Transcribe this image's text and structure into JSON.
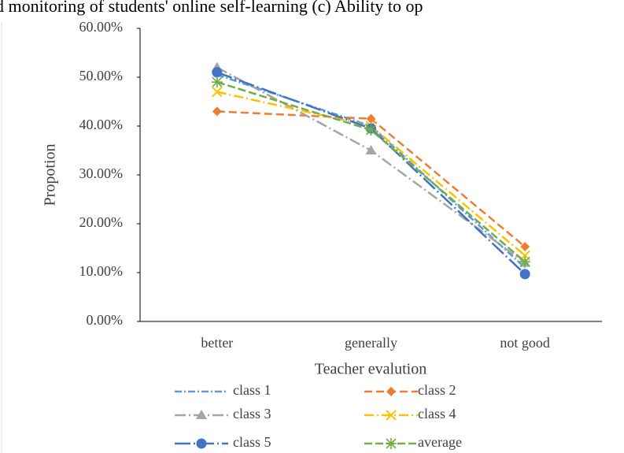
{
  "chart_data": {
    "type": "line",
    "title": "d monitoring of students' online self-learning (c) Ability to op",
    "x_label": "Teacher evalution",
    "y_label": "Propotion",
    "categories": [
      "better",
      "generally",
      "not good"
    ],
    "series": [
      {
        "name": "class 1",
        "color": "#5b9bd5",
        "marker": "none",
        "dash": "9 3 2 3",
        "values": [
          50.5,
          40,
          11
        ]
      },
      {
        "name": "class 2",
        "color": "#ed7d31",
        "marker": "diamond",
        "dash": "10 5",
        "values": [
          43,
          41.5,
          15.3
        ]
      },
      {
        "name": "class 3",
        "color": "#a5a5a5",
        "marker": "triangle",
        "dash": "14 4 2 4",
        "values": [
          52,
          35,
          12
        ]
      },
      {
        "name": "class 4",
        "color": "#ffc000",
        "marker": "x",
        "dash": "12 4 2 4",
        "values": [
          47,
          40,
          13.5
        ]
      },
      {
        "name": "class 5",
        "color": "#4472c4",
        "marker": "circle",
        "dash": "20 4 2 4",
        "values": [
          51,
          39.5,
          9.7
        ]
      },
      {
        "name": "average",
        "color": "#70ad47",
        "marker": "star",
        "dash": "10 4",
        "values": [
          49,
          39.2,
          12.2
        ]
      }
    ],
    "ylim": [
      0,
      60
    ],
    "yticks": [
      {
        "value": 0,
        "label": "0.00%"
      },
      {
        "value": 10,
        "label": "10.00%"
      },
      {
        "value": 20,
        "label": "20.00%"
      },
      {
        "value": 30,
        "label": "30.00%"
      },
      {
        "value": 40,
        "label": "40.00%"
      },
      {
        "value": 50,
        "label": "50.00%"
      },
      {
        "value": 60,
        "label": "60.00%"
      }
    ],
    "legend": "bottom"
  }
}
